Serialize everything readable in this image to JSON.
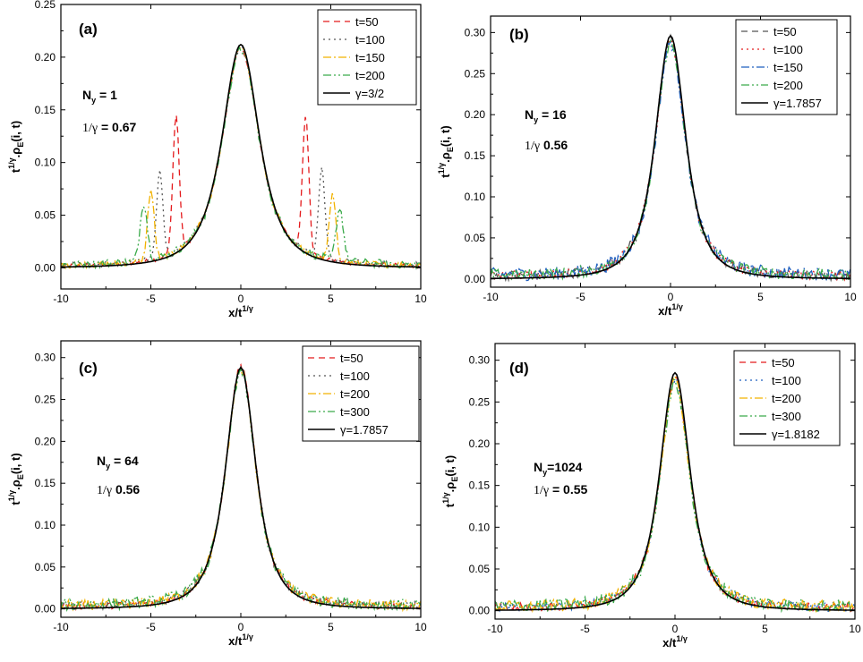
{
  "figure": {
    "x_axis_label_main": "x/t",
    "x_axis_label_sup": "1/γ",
    "y_axis_label_parts": [
      "t",
      "1/γ",
      ".ρ",
      "E",
      "(i, t)"
    ]
  },
  "chart_data": [
    {
      "type": "line",
      "panel_label": "(a)",
      "xlim": [
        -10,
        10
      ],
      "ylim": [
        -0.02,
        0.25
      ],
      "xticks": [
        -10,
        -5,
        0,
        5,
        10
      ],
      "xtick_labels": [
        "-10",
        "-5",
        "0",
        "5",
        "10"
      ],
      "yticks": [
        0.0,
        0.05,
        0.1,
        0.15,
        0.2,
        0.25
      ],
      "ytick_labels": [
        "0.00",
        "0.05",
        "0.10",
        "0.15",
        "0.20",
        "0.25"
      ],
      "ny_label": "N",
      "ny_sub": "y",
      "ny_value": " = 1",
      "gamma_inv_label": "1/γ",
      "gamma_inv_value": " = 0.67",
      "legend_position": "top-right",
      "amplitude": 0.212,
      "width": 1.6,
      "series": [
        {
          "name": "t=50",
          "style": "dashed",
          "color": "#e41a1c",
          "amp": 0.208,
          "bumps": [
            [
              -3.6,
              0.13,
              0.25
            ],
            [
              3.6,
              0.13,
              0.25
            ]
          ],
          "noise": 0.002
        },
        {
          "name": "t=100",
          "style": "dotted",
          "color": "#555555",
          "amp": 0.21,
          "bumps": [
            [
              -4.5,
              0.082,
              0.25
            ],
            [
              4.5,
              0.085,
              0.25
            ]
          ],
          "noise": 0.003
        },
        {
          "name": "t=150",
          "style": "dashdot",
          "color": "#f2b200",
          "amp": 0.209,
          "bumps": [
            [
              -5.0,
              0.066,
              0.25
            ],
            [
              5.1,
              0.062,
              0.25
            ]
          ],
          "noise": 0.003
        },
        {
          "name": "t=200",
          "style": "dashdotdot",
          "color": "#3aaa4a",
          "amp": 0.207,
          "bumps": [
            [
              -5.4,
              0.055,
              0.28
            ],
            [
              5.5,
              0.05,
              0.28
            ]
          ],
          "noise": 0.004
        },
        {
          "name": "γ=3/2",
          "style": "solid",
          "color": "#000000",
          "amp": 0.212,
          "bumps": [],
          "noise": 0
        }
      ]
    },
    {
      "type": "line",
      "panel_label": "(b)",
      "xlim": [
        -10,
        10
      ],
      "ylim": [
        -0.01,
        0.32
      ],
      "xticks": [
        -10,
        -5,
        0,
        5,
        10
      ],
      "xtick_labels": [
        "-10",
        "-5",
        "0",
        "5",
        "10"
      ],
      "yticks": [
        0.0,
        0.05,
        0.1,
        0.15,
        0.2,
        0.25,
        0.3
      ],
      "ytick_labels": [
        "0.00",
        "0.05",
        "0.10",
        "0.15",
        "0.20",
        "0.25",
        "0.30"
      ],
      "ny_label": "N",
      "ny_sub": "y",
      "ny_value": " = 16",
      "gamma_inv_label": "1/γ",
      "gamma_inv_value": " 0.56",
      "legend_position": "top-right",
      "amplitude": 0.296,
      "width": 1.3,
      "series": [
        {
          "name": "t=50",
          "style": "dashed",
          "color": "#555555",
          "amp": 0.292,
          "bumps": [],
          "noise": 0.006
        },
        {
          "name": "t=100",
          "style": "dotted",
          "color": "#e41a1c",
          "amp": 0.29,
          "bumps": [],
          "noise": 0.006
        },
        {
          "name": "t=150",
          "style": "dashdot",
          "color": "#1f5fbf",
          "amp": 0.288,
          "bumps": [],
          "noise": 0.008
        },
        {
          "name": "t=200",
          "style": "dashdotdot",
          "color": "#3aaa4a",
          "amp": 0.287,
          "bumps": [],
          "noise": 0.007
        },
        {
          "name": "γ=1.7857",
          "style": "solid",
          "color": "#000000",
          "amp": 0.296,
          "bumps": [],
          "noise": 0
        }
      ]
    },
    {
      "type": "line",
      "panel_label": "(c)",
      "xlim": [
        -10,
        10
      ],
      "ylim": [
        -0.01,
        0.32
      ],
      "xticks": [
        -10,
        -5,
        0,
        5,
        10
      ],
      "xtick_labels": [
        "-10",
        "-5",
        "0",
        "5",
        "10"
      ],
      "yticks": [
        0.0,
        0.05,
        0.1,
        0.15,
        0.2,
        0.25,
        0.3
      ],
      "ytick_labels": [
        "0.00",
        "0.05",
        "0.10",
        "0.15",
        "0.20",
        "0.25",
        "0.30"
      ],
      "ny_label": "N",
      "ny_sub": "y",
      "ny_value": " = 64",
      "gamma_inv_label": "1/γ",
      "gamma_inv_value": " 0.56",
      "legend_position": "top-right",
      "amplitude": 0.288,
      "width": 1.3,
      "series": [
        {
          "name": "t=50",
          "style": "dashed",
          "color": "#e41a1c",
          "amp": 0.289,
          "bumps": [],
          "noise": 0.004
        },
        {
          "name": "t=100",
          "style": "dotted",
          "color": "#555555",
          "amp": 0.287,
          "bumps": [],
          "noise": 0.005
        },
        {
          "name": "t=200",
          "style": "dashdot",
          "color": "#f2b200",
          "amp": 0.285,
          "bumps": [],
          "noise": 0.006
        },
        {
          "name": "t=300",
          "style": "dashdotdot",
          "color": "#3aaa4a",
          "amp": 0.284,
          "bumps": [],
          "noise": 0.007
        },
        {
          "name": "γ=1.7857",
          "style": "solid",
          "color": "#000000",
          "amp": 0.288,
          "bumps": [],
          "noise": 0
        }
      ]
    },
    {
      "type": "line",
      "panel_label": "(d)",
      "xlim": [
        -10,
        10
      ],
      "ylim": [
        -0.01,
        0.32
      ],
      "xticks": [
        -10,
        -5,
        0,
        5,
        10
      ],
      "xtick_labels": [
        "-10",
        "-5",
        "0",
        "5",
        "10"
      ],
      "yticks": [
        0.0,
        0.05,
        0.1,
        0.15,
        0.2,
        0.25,
        0.3
      ],
      "ytick_labels": [
        "0.00",
        "0.05",
        "0.10",
        "0.15",
        "0.20",
        "0.25",
        "0.30"
      ],
      "ny_label": "N",
      "ny_sub": "y",
      "ny_value": "=1024",
      "gamma_inv_label": "1/γ",
      "gamma_inv_value": " = 0.55",
      "legend_position": "top-right",
      "amplitude": 0.285,
      "width": 1.3,
      "series": [
        {
          "name": "t=50",
          "style": "dashed",
          "color": "#e41a1c",
          "amp": 0.28,
          "bumps": [],
          "noise": 0.005
        },
        {
          "name": "t=100",
          "style": "dotted",
          "color": "#1f5fbf",
          "amp": 0.278,
          "bumps": [],
          "noise": 0.006
        },
        {
          "name": "t=200",
          "style": "dashdot",
          "color": "#f2b200",
          "amp": 0.275,
          "bumps": [],
          "noise": 0.007
        },
        {
          "name": "t=300",
          "style": "dashdotdot",
          "color": "#3aaa4a",
          "amp": 0.272,
          "bumps": [],
          "noise": 0.008
        },
        {
          "name": "γ=1.8182",
          "style": "solid",
          "color": "#000000",
          "amp": 0.285,
          "bumps": [],
          "noise": 0
        }
      ]
    }
  ]
}
